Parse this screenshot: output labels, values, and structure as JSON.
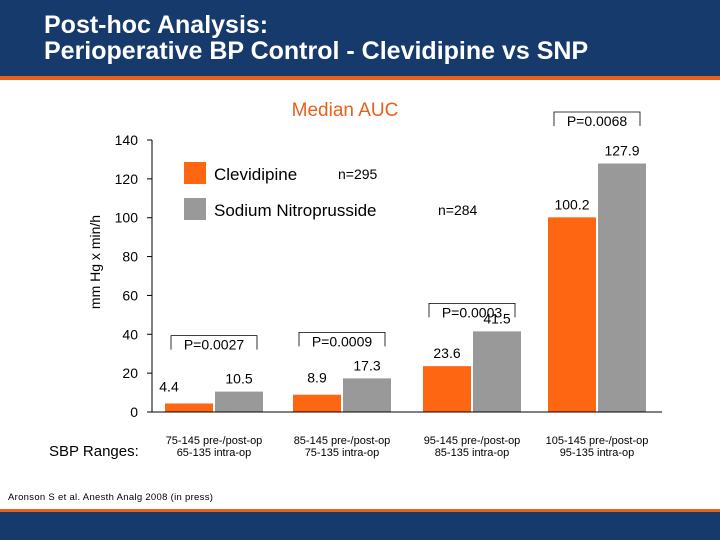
{
  "slide": {
    "title_line1": "Post-hoc Analysis:",
    "title_line2": "Perioperative BP Control - Clevidipine vs SNP",
    "citation": "Aronson S et al. Anesth Analg 2008 (in press)"
  },
  "colors": {
    "header_bg": "#153a6b",
    "accent": "#e8601c",
    "clevidipine": "#ff6611",
    "snp": "#999999"
  },
  "chart_data": {
    "type": "bar",
    "title": "Median AUC",
    "ylabel": "mm Hg x min/h",
    "ylim": [
      0,
      140
    ],
    "yticks": [
      0,
      20,
      40,
      60,
      80,
      100,
      120,
      140
    ],
    "categories_prefix": "SBP Ranges:",
    "categories": [
      {
        "line1": "75-145 pre-/post-op",
        "line2": "65-135 intra-op"
      },
      {
        "line1": "85-145 pre-/post-op",
        "line2": "75-135 intra-op"
      },
      {
        "line1": "95-145 pre-/post-op",
        "line2": "85-135 intra-op"
      },
      {
        "line1": "105-145 pre-/post-op",
        "line2": "95-135 intra-op"
      }
    ],
    "series": [
      {
        "name": "Clevidipine",
        "n_label": "n=295",
        "values": [
          4.4,
          8.9,
          23.6,
          100.2
        ]
      },
      {
        "name": "Sodium Nitroprusside",
        "n_label": "n=284",
        "values": [
          10.5,
          17.3,
          41.5,
          127.9
        ]
      }
    ],
    "value_labels": [
      [
        "4.4",
        "10.5"
      ],
      [
        "8.9",
        "17.3"
      ],
      [
        "23.6",
        "41.5"
      ],
      [
        "100.2",
        "127.9"
      ]
    ],
    "p_values": [
      "P=0.0027",
      "P=0.0009",
      "P=0.0003",
      "P=0.0068"
    ]
  }
}
